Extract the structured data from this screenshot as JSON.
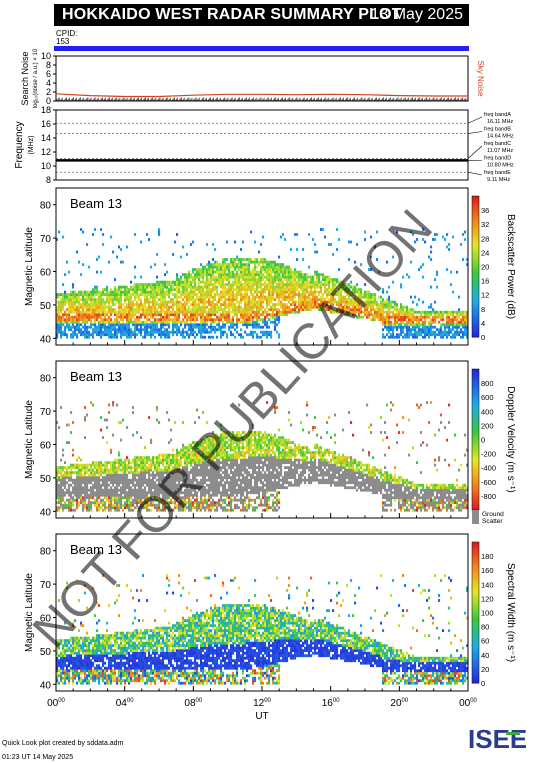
{
  "header": {
    "title": "HOKKAIDO WEST RADAR SUMMARY PLOT",
    "date": "13 May 2025",
    "cpid_label": "CPID:",
    "cpid_value": "153"
  },
  "watermark": "NOT FOR PUBLICATION",
  "footer": {
    "line1": "Quick Look plot created by sddata.adm",
    "line2": "01:23 UT 14 May 2025"
  },
  "logo_text": "ISEE",
  "colors": {
    "cpid_bar": "#2222ee",
    "sky_noise": "#d2451f",
    "ground_scatter": "#8c8c8c"
  },
  "chart_data": [
    {
      "type": "line",
      "panel": "noise",
      "ylabel": "Search Noise",
      "ylabel_sub": "log₁₀(noise / a.u.) × 10",
      "series_label": "Sky Noise",
      "ylim": [
        0,
        10
      ],
      "yticks": [
        "0",
        "2",
        "4",
        "6",
        "8",
        "10"
      ],
      "x_hours": [
        0,
        2,
        4,
        6,
        8,
        10,
        12,
        14,
        16,
        18,
        20,
        22,
        24
      ],
      "sky_noise": [
        1.6,
        1.2,
        1.0,
        1.0,
        1.3,
        1.5,
        1.5,
        1.4,
        1.5,
        1.4,
        1.2,
        1.1,
        1.1
      ],
      "search_noise": [
        0.6,
        0.5,
        0.5,
        0.5,
        0.5,
        0.5,
        0.5,
        0.5,
        0.5,
        0.5,
        0.5,
        0.5,
        0.5
      ]
    },
    {
      "type": "line",
      "panel": "frequency",
      "ylabel": "Frequency",
      "ylabel_sub": "(MHz)",
      "ylim": [
        8,
        18
      ],
      "yticks": [
        "8",
        "10",
        "12",
        "14",
        "16",
        "18"
      ],
      "series": [
        {
          "x": [
            0,
            24
          ],
          "y": [
            10.8,
            10.8
          ]
        }
      ],
      "bands": [
        {
          "name": "freq bandA",
          "value": "16.11 MHz",
          "mhz": 16.11
        },
        {
          "name": "freq bandB",
          "value": "14.64 MHz",
          "mhz": 14.64
        },
        {
          "name": "freq bandC",
          "value": "11.07 MHz",
          "mhz": 11.07
        },
        {
          "name": "freq bandD",
          "value": "10.80 MHz",
          "mhz": 10.8
        },
        {
          "name": "freq bandE",
          "value": "9.11 MHz",
          "mhz": 9.11
        }
      ]
    },
    {
      "type": "heatmap",
      "panel": "power",
      "beam": "Beam 13",
      "ylabel": "Magnetic Latitude",
      "ylim": [
        38,
        85
      ],
      "yticks": [
        "40",
        "50",
        "60",
        "70",
        "80"
      ],
      "colorbar_label": "Backscatter Power (dB)",
      "colorbar_ticks": [
        "0",
        "4",
        "8",
        "12",
        "16",
        "20",
        "24",
        "28",
        "32",
        "36"
      ],
      "colorbar_range": [
        0,
        40
      ]
    },
    {
      "type": "heatmap",
      "panel": "velocity",
      "beam": "Beam 13",
      "ylabel": "Magnetic Latitude",
      "ylim": [
        38,
        85
      ],
      "yticks": [
        "40",
        "50",
        "60",
        "70",
        "80"
      ],
      "colorbar_label": "Doppler Velocity (m s⁻¹)",
      "colorbar_ticks": [
        "800",
        "600",
        "400",
        "200",
        "0",
        "-200",
        "-400",
        "-600",
        "-800"
      ],
      "colorbar_range": [
        -1000,
        1000
      ],
      "ground_scatter_label": "Ground Scatter"
    },
    {
      "type": "heatmap",
      "panel": "width",
      "beam": "Beam 13",
      "ylabel": "Magnetic Latitude",
      "ylim": [
        38,
        85
      ],
      "yticks": [
        "40",
        "50",
        "60",
        "70",
        "80"
      ],
      "colorbar_label": "Spectral Width (m s⁻¹)",
      "colorbar_ticks": [
        "0",
        "20",
        "40",
        "60",
        "80",
        "100",
        "120",
        "140",
        "160",
        "180"
      ],
      "colorbar_range": [
        0,
        200
      ],
      "xlabel": "UT",
      "xlim": [
        0,
        24
      ],
      "xticks": [
        "00⁰⁰",
        "04⁰⁰",
        "08⁰⁰",
        "12⁰⁰",
        "16⁰⁰",
        "20⁰⁰",
        "00⁰⁰"
      ]
    }
  ]
}
